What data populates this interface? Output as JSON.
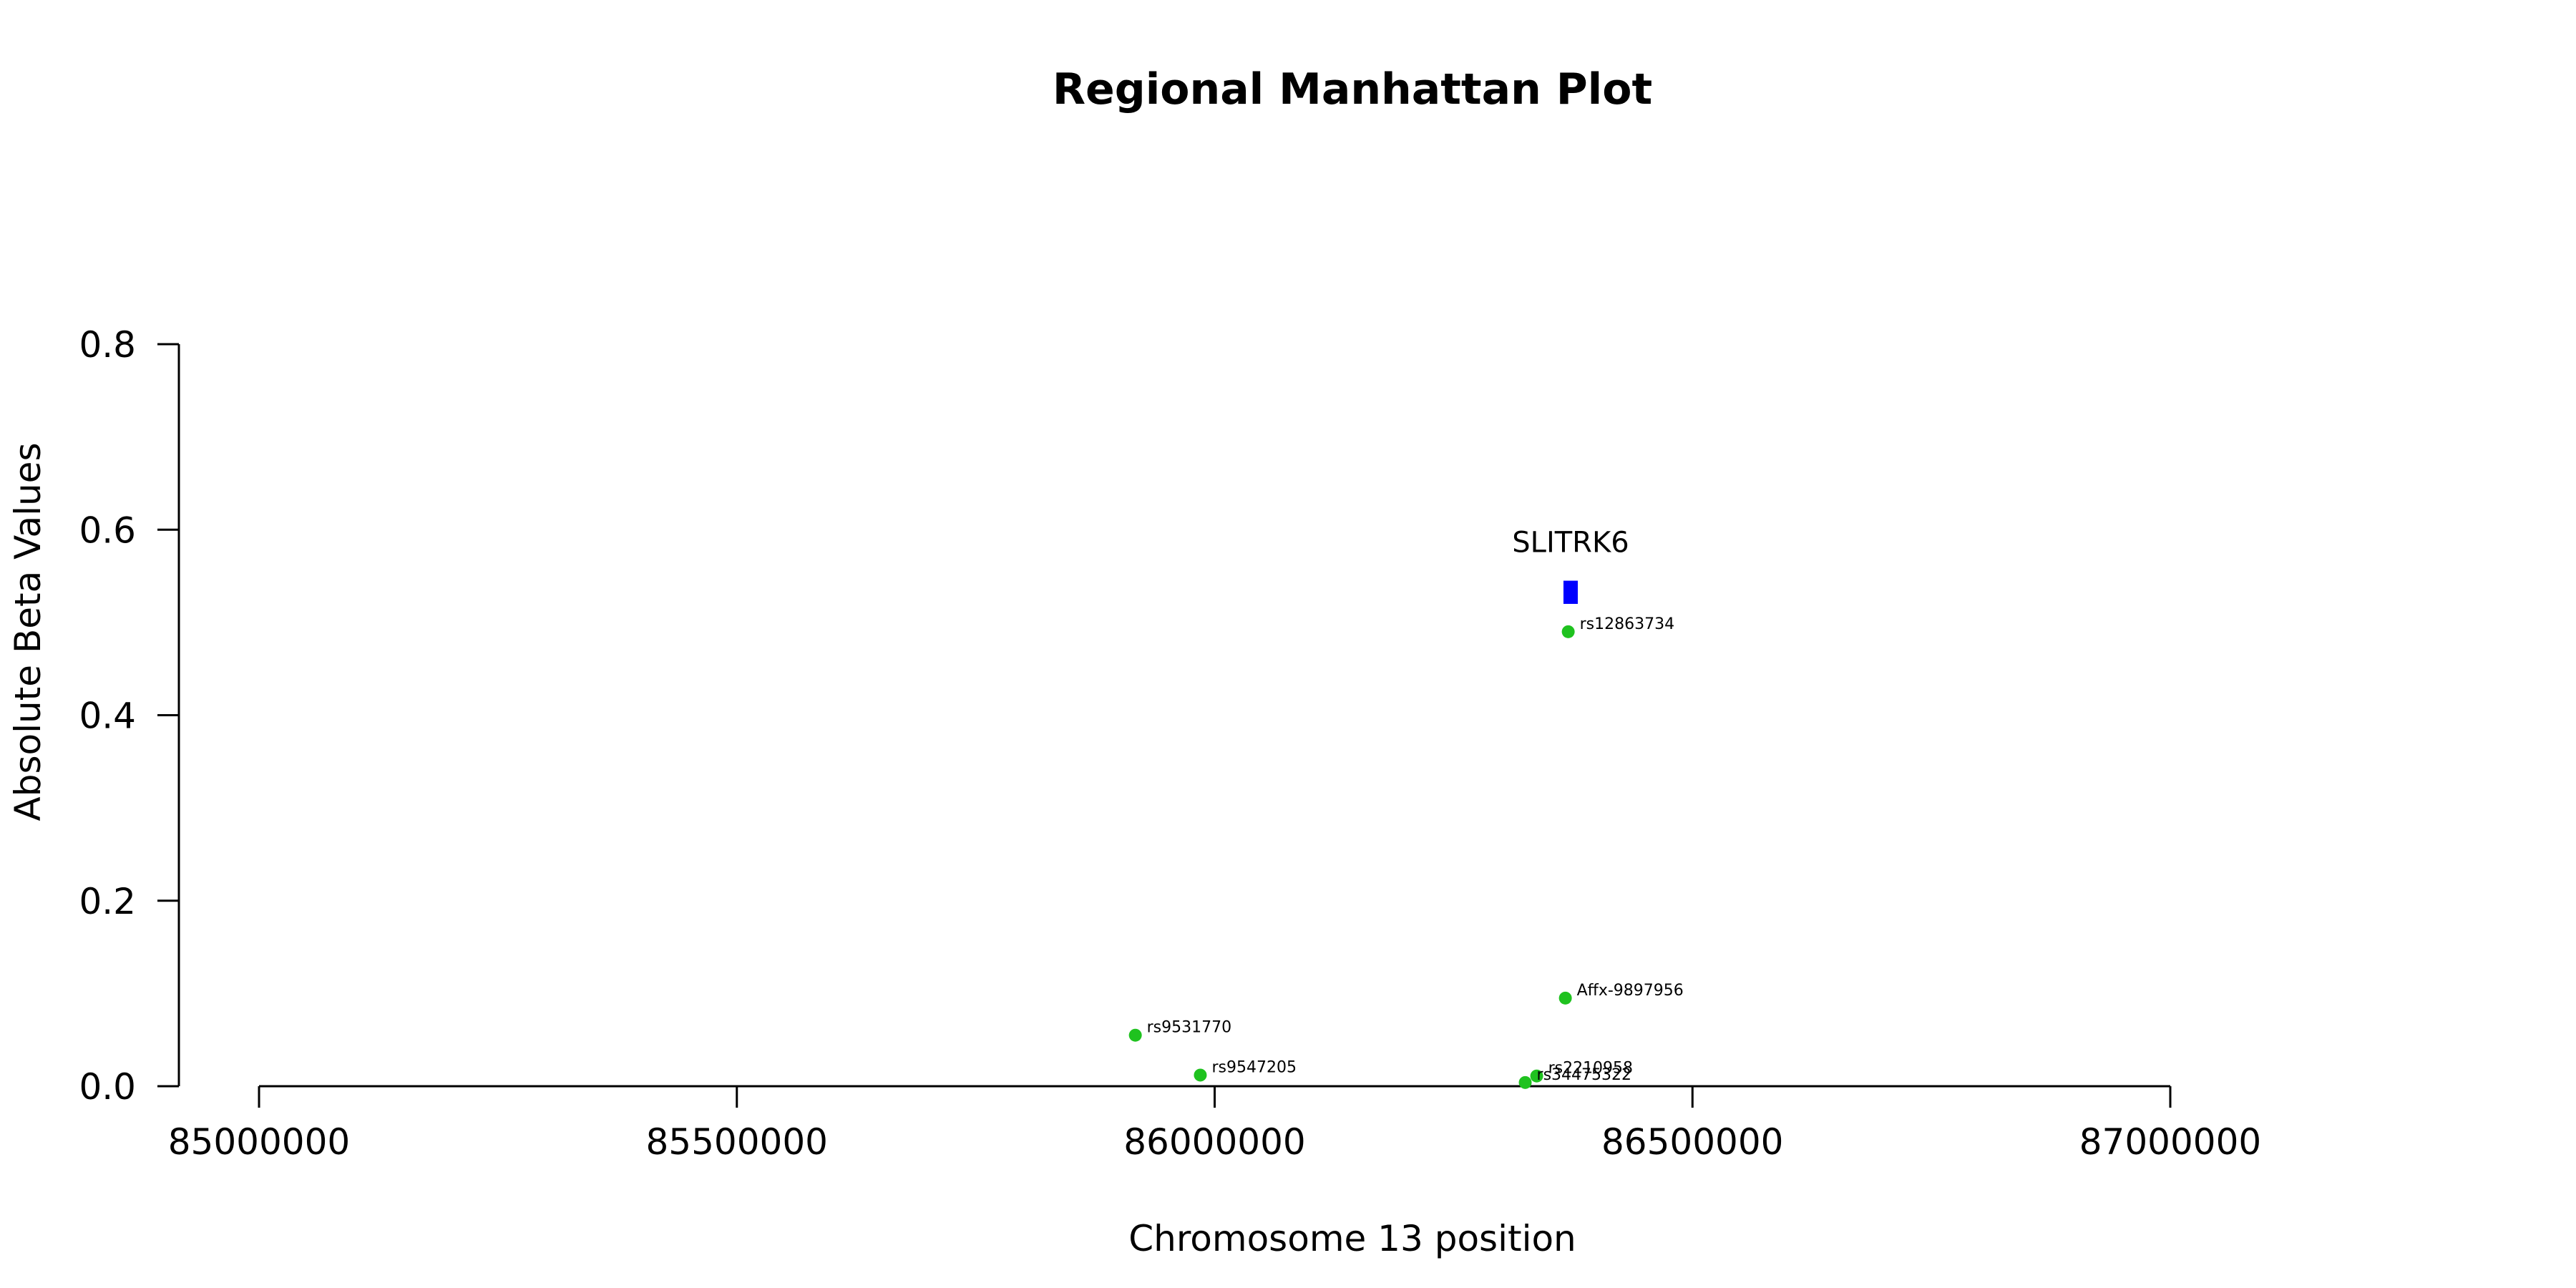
{
  "chart_data": {
    "type": "scatter",
    "title": "Regional Manhattan Plot",
    "xlabel": "Chromosome 13 position",
    "ylabel": "Absolute Beta Values",
    "xlim": [
      85000000,
      87000000
    ],
    "ylim": [
      0,
      0.8
    ],
    "x_ticks": [
      85000000,
      85500000,
      86000000,
      86500000,
      87000000
    ],
    "x_tick_labels": [
      "85000000",
      "85500000",
      "86000000",
      "86500000",
      "87000000"
    ],
    "y_ticks": [
      0.0,
      0.2,
      0.4,
      0.6,
      0.8
    ],
    "y_tick_labels": [
      "0.0",
      "0.2",
      "0.4",
      "0.6",
      "0.8"
    ],
    "grid": false,
    "colors": {
      "points": "#1fc21f",
      "gene": "#0000ff",
      "axis": "#000000"
    },
    "points": [
      {
        "label": "rs12863734",
        "x": 86370000,
        "y": 0.49
      },
      {
        "label": "Affx-9897956",
        "x": 86367000,
        "y": 0.095
      },
      {
        "label": "rs9531770",
        "x": 85917000,
        "y": 0.055
      },
      {
        "label": "rs9547205",
        "x": 85985000,
        "y": 0.012
      },
      {
        "label": "rs2210958",
        "x": 86337000,
        "y": 0.011
      },
      {
        "label": "rs34475322",
        "x": 86325000,
        "y": 0.004
      }
    ],
    "genes": [
      {
        "name": "SLITRK6",
        "start": 86365000,
        "end": 86380000,
        "y_low": 0.52,
        "y_high": 0.545
      }
    ]
  }
}
